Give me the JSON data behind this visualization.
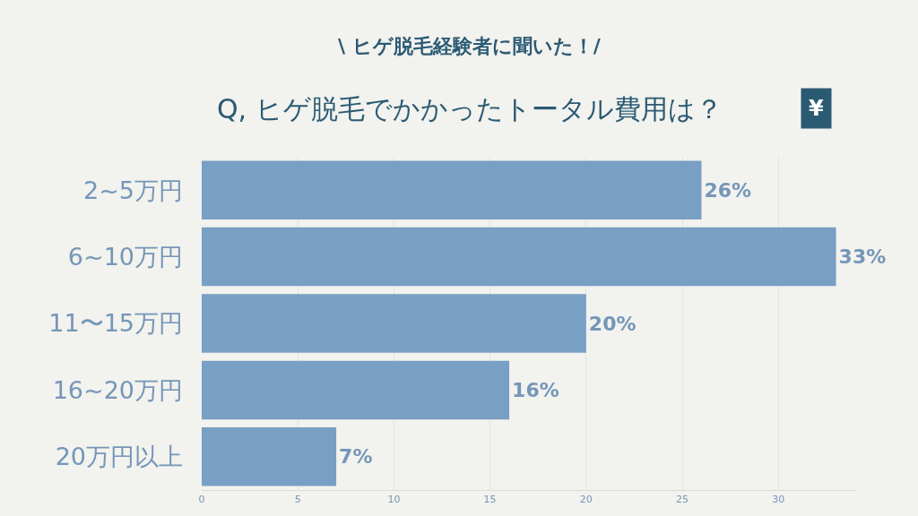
{
  "chart_data": {
    "type": "bar",
    "orientation": "horizontal",
    "subtitle": "\\ ヒゲ脱毛経験者に聞いた！/",
    "title": "Q, ヒゲ脱毛でかかったトータル費用は？",
    "annotations": [
      "¥"
    ],
    "categories": [
      "2~5万円",
      "6~10万円",
      "11〜15万円",
      "16~20万円",
      "20万円以上"
    ],
    "values": [
      26,
      33,
      20,
      16,
      7
    ],
    "value_labels": [
      "26%",
      "33%",
      "20%",
      "16%",
      "7%"
    ],
    "color": "#789fc4",
    "xlim": [
      0,
      34
    ],
    "xticks": [
      0,
      5,
      10,
      15,
      20,
      25,
      30
    ],
    "grid": "x"
  }
}
